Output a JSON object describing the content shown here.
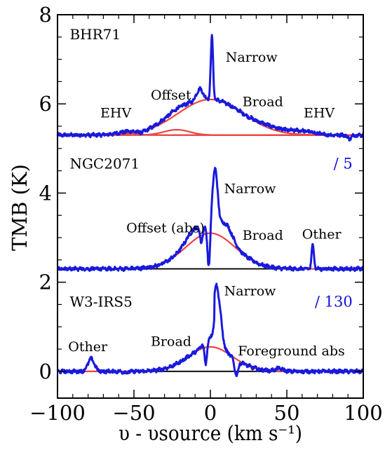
{
  "chart_data": {
    "type": "line",
    "x_range": [
      -100,
      100
    ],
    "y_range": [
      -0.6,
      8
    ],
    "xlabel": "υ - υsource (km s⁻¹)",
    "ylabel": "TMB (K)",
    "x_ticks": [
      -100,
      -50,
      0,
      50,
      100
    ],
    "x_tick_labels": [
      "−100",
      "−50",
      "0",
      "50",
      "100"
    ],
    "y_ticks": [
      0,
      2,
      4,
      6,
      8
    ],
    "y_tick_labels": [
      "0",
      "2",
      "4",
      "6",
      "8"
    ],
    "colors": {
      "observed": "#1a1adb",
      "fit": "#ee4444",
      "baseline": "#000000"
    },
    "panels": [
      {
        "name": "BHR71",
        "scale_label": "",
        "baseline": 5.3,
        "components": [
          {
            "name": "Broad",
            "center": 0,
            "amp": 0.8,
            "fwhm": 50
          },
          {
            "name": "Offset",
            "center": -22,
            "amp": 0.12,
            "fwhm": 20
          },
          {
            "name": "EHV",
            "center": -55,
            "amp": 0.05,
            "fwhm": 15
          },
          {
            "name": "Narrow",
            "center": 1,
            "amp": 1.4,
            "fwhm": 1.8
          }
        ],
        "annotations": [
          {
            "text": "Narrow",
            "x": 10,
            "y": 6.95
          },
          {
            "text": "Offset",
            "x": -39,
            "y": 6.1
          },
          {
            "text": "Broad",
            "x": 21,
            "y": 5.95
          },
          {
            "text": "EHV",
            "x": -72,
            "y": 5.7
          },
          {
            "text": "EHV",
            "x": 61,
            "y": 5.7
          }
        ]
      },
      {
        "name": "NGC2071",
        "scale_label": "/ 5",
        "baseline": 2.3,
        "components": [
          {
            "name": "Broad",
            "center": 0,
            "amp": 0.8,
            "fwhm": 38
          },
          {
            "name": "Narrow",
            "center": 3,
            "amp": 1.35,
            "fwhm": 4
          },
          {
            "name": "Other",
            "center": 67,
            "amp": 0.55,
            "fwhm": 1.8
          }
        ],
        "annotations": [
          {
            "text": "Narrow",
            "x": 9,
            "y": 4.0
          },
          {
            "text": "Offset (abs)",
            "x": -55,
            "y": 3.12
          },
          {
            "text": "Broad",
            "x": 21,
            "y": 2.95
          },
          {
            "text": "Other",
            "x": 60,
            "y": 2.98
          }
        ]
      },
      {
        "name": "W3-IRS5",
        "scale_label": "/ 130",
        "baseline": 0.0,
        "components": [
          {
            "name": "Broad",
            "center": 0,
            "amp": 0.55,
            "fwhm": 34
          },
          {
            "name": "Narrow",
            "center": 5,
            "amp": 1.1,
            "fwhm": 5
          },
          {
            "name": "Other",
            "center": -78,
            "amp": 0.28,
            "fwhm": 5
          }
        ],
        "annotations": [
          {
            "text": "Narrow",
            "x": 9,
            "y": 1.7
          },
          {
            "text": "Other",
            "x": -93,
            "y": 0.45
          },
          {
            "text": "Broad",
            "x": -39,
            "y": 0.57
          },
          {
            "text": "Foreground abs",
            "x": 18,
            "y": 0.36
          }
        ]
      }
    ]
  }
}
